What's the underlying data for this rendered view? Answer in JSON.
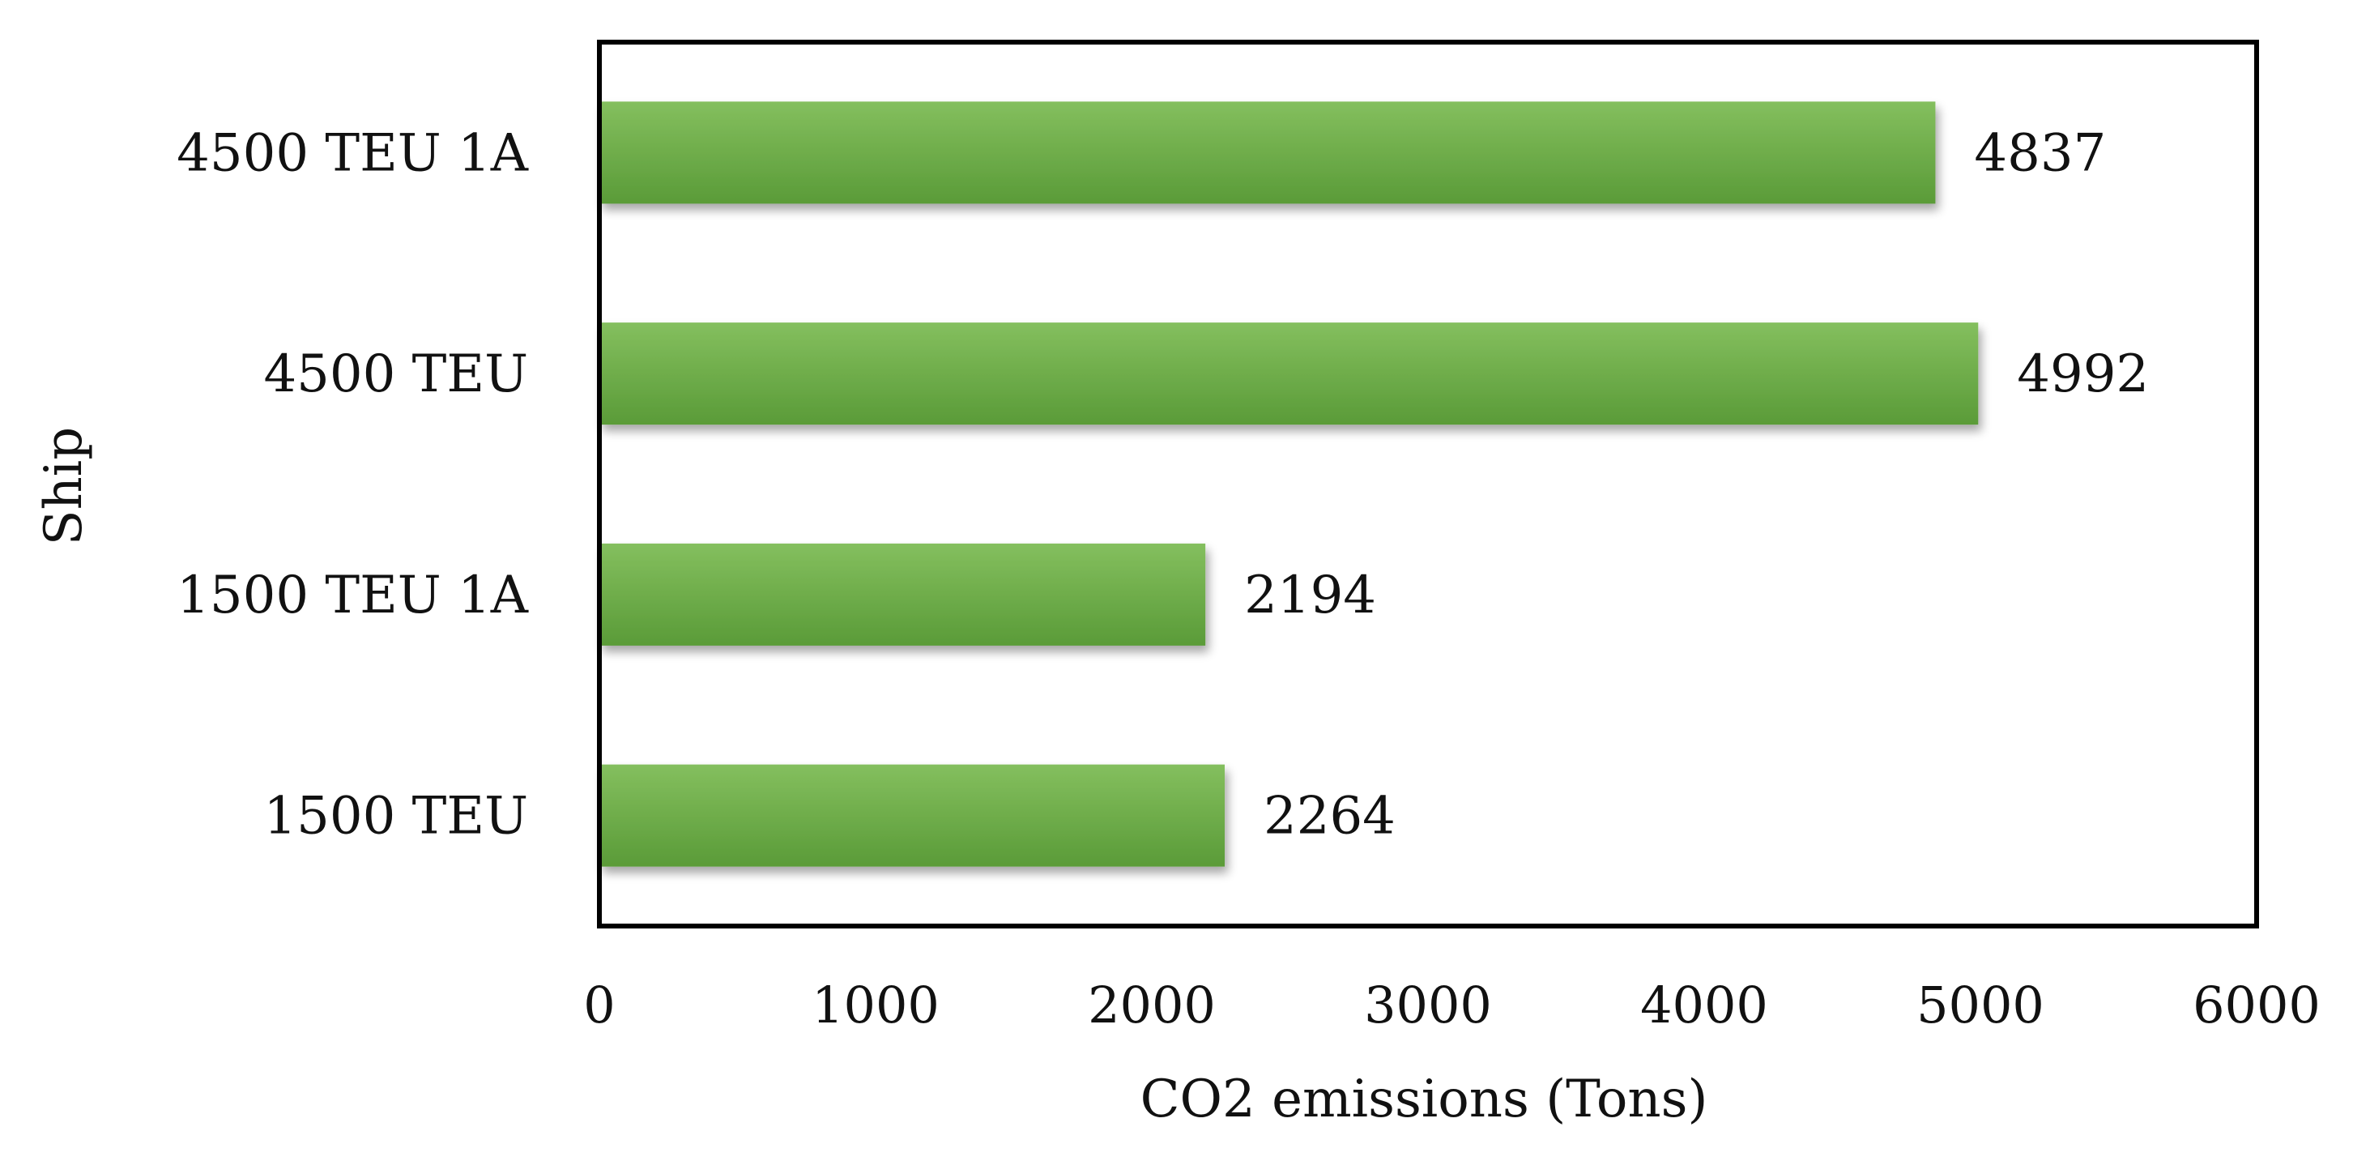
{
  "chart_data": {
    "type": "bar",
    "orientation": "horizontal",
    "categories": [
      "4500 TEU 1A",
      "4500 TEU",
      "1500 TEU 1A",
      "1500 TEU"
    ],
    "values": [
      4837,
      4992,
      2194,
      2264
    ],
    "xlabel": "CO2 emissions (Tons)",
    "ylabel": "Ship",
    "xlim": [
      0,
      6000
    ],
    "xticks": [
      "0",
      "1000",
      "2000",
      "3000",
      "4000",
      "5000",
      "6000"
    ],
    "grid": false,
    "legend": "none",
    "bar_color": "#6aad45",
    "bar_color_light": "#84bf5e",
    "bar_color_dark": "#5a9b38",
    "frame_color": "#000000"
  }
}
